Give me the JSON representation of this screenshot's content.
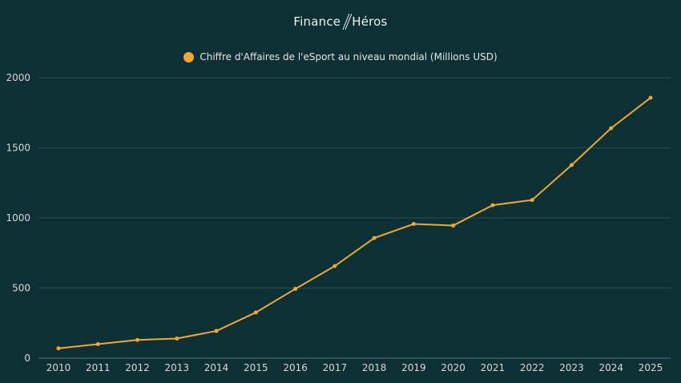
{
  "brand": {
    "left": "Finance",
    "right": "Héros"
  },
  "colors": {
    "background": "#0c3033",
    "line": "#f0a830",
    "grid": "#2a4b4d",
    "text": "#d9d9d9"
  },
  "chart_data": {
    "type": "line",
    "title": "",
    "xlabel": "",
    "ylabel": "",
    "legend": [
      "Chiffre d'Affaires de l'eSport au niveau mondial (Millions USD)"
    ],
    "legend_position": "top",
    "grid": true,
    "ylim": [
      0,
      2000
    ],
    "yticks": [
      0,
      500,
      1000,
      1500,
      2000
    ],
    "x": [
      "2010",
      "2011",
      "2012",
      "2013",
      "2014",
      "2015",
      "2016",
      "2017",
      "2018",
      "2019",
      "2020",
      "2021",
      "2022",
      "2023",
      "2024",
      "2025"
    ],
    "series": [
      {
        "name": "Chiffre d'Affaires de l'eSport au niveau mondial (Millions USD)",
        "values": [
          70,
          100,
          130,
          140,
          194,
          326,
          494,
          657,
          857,
          957,
          946,
          1091,
          1128,
          1377,
          1640,
          1857
        ]
      }
    ]
  }
}
